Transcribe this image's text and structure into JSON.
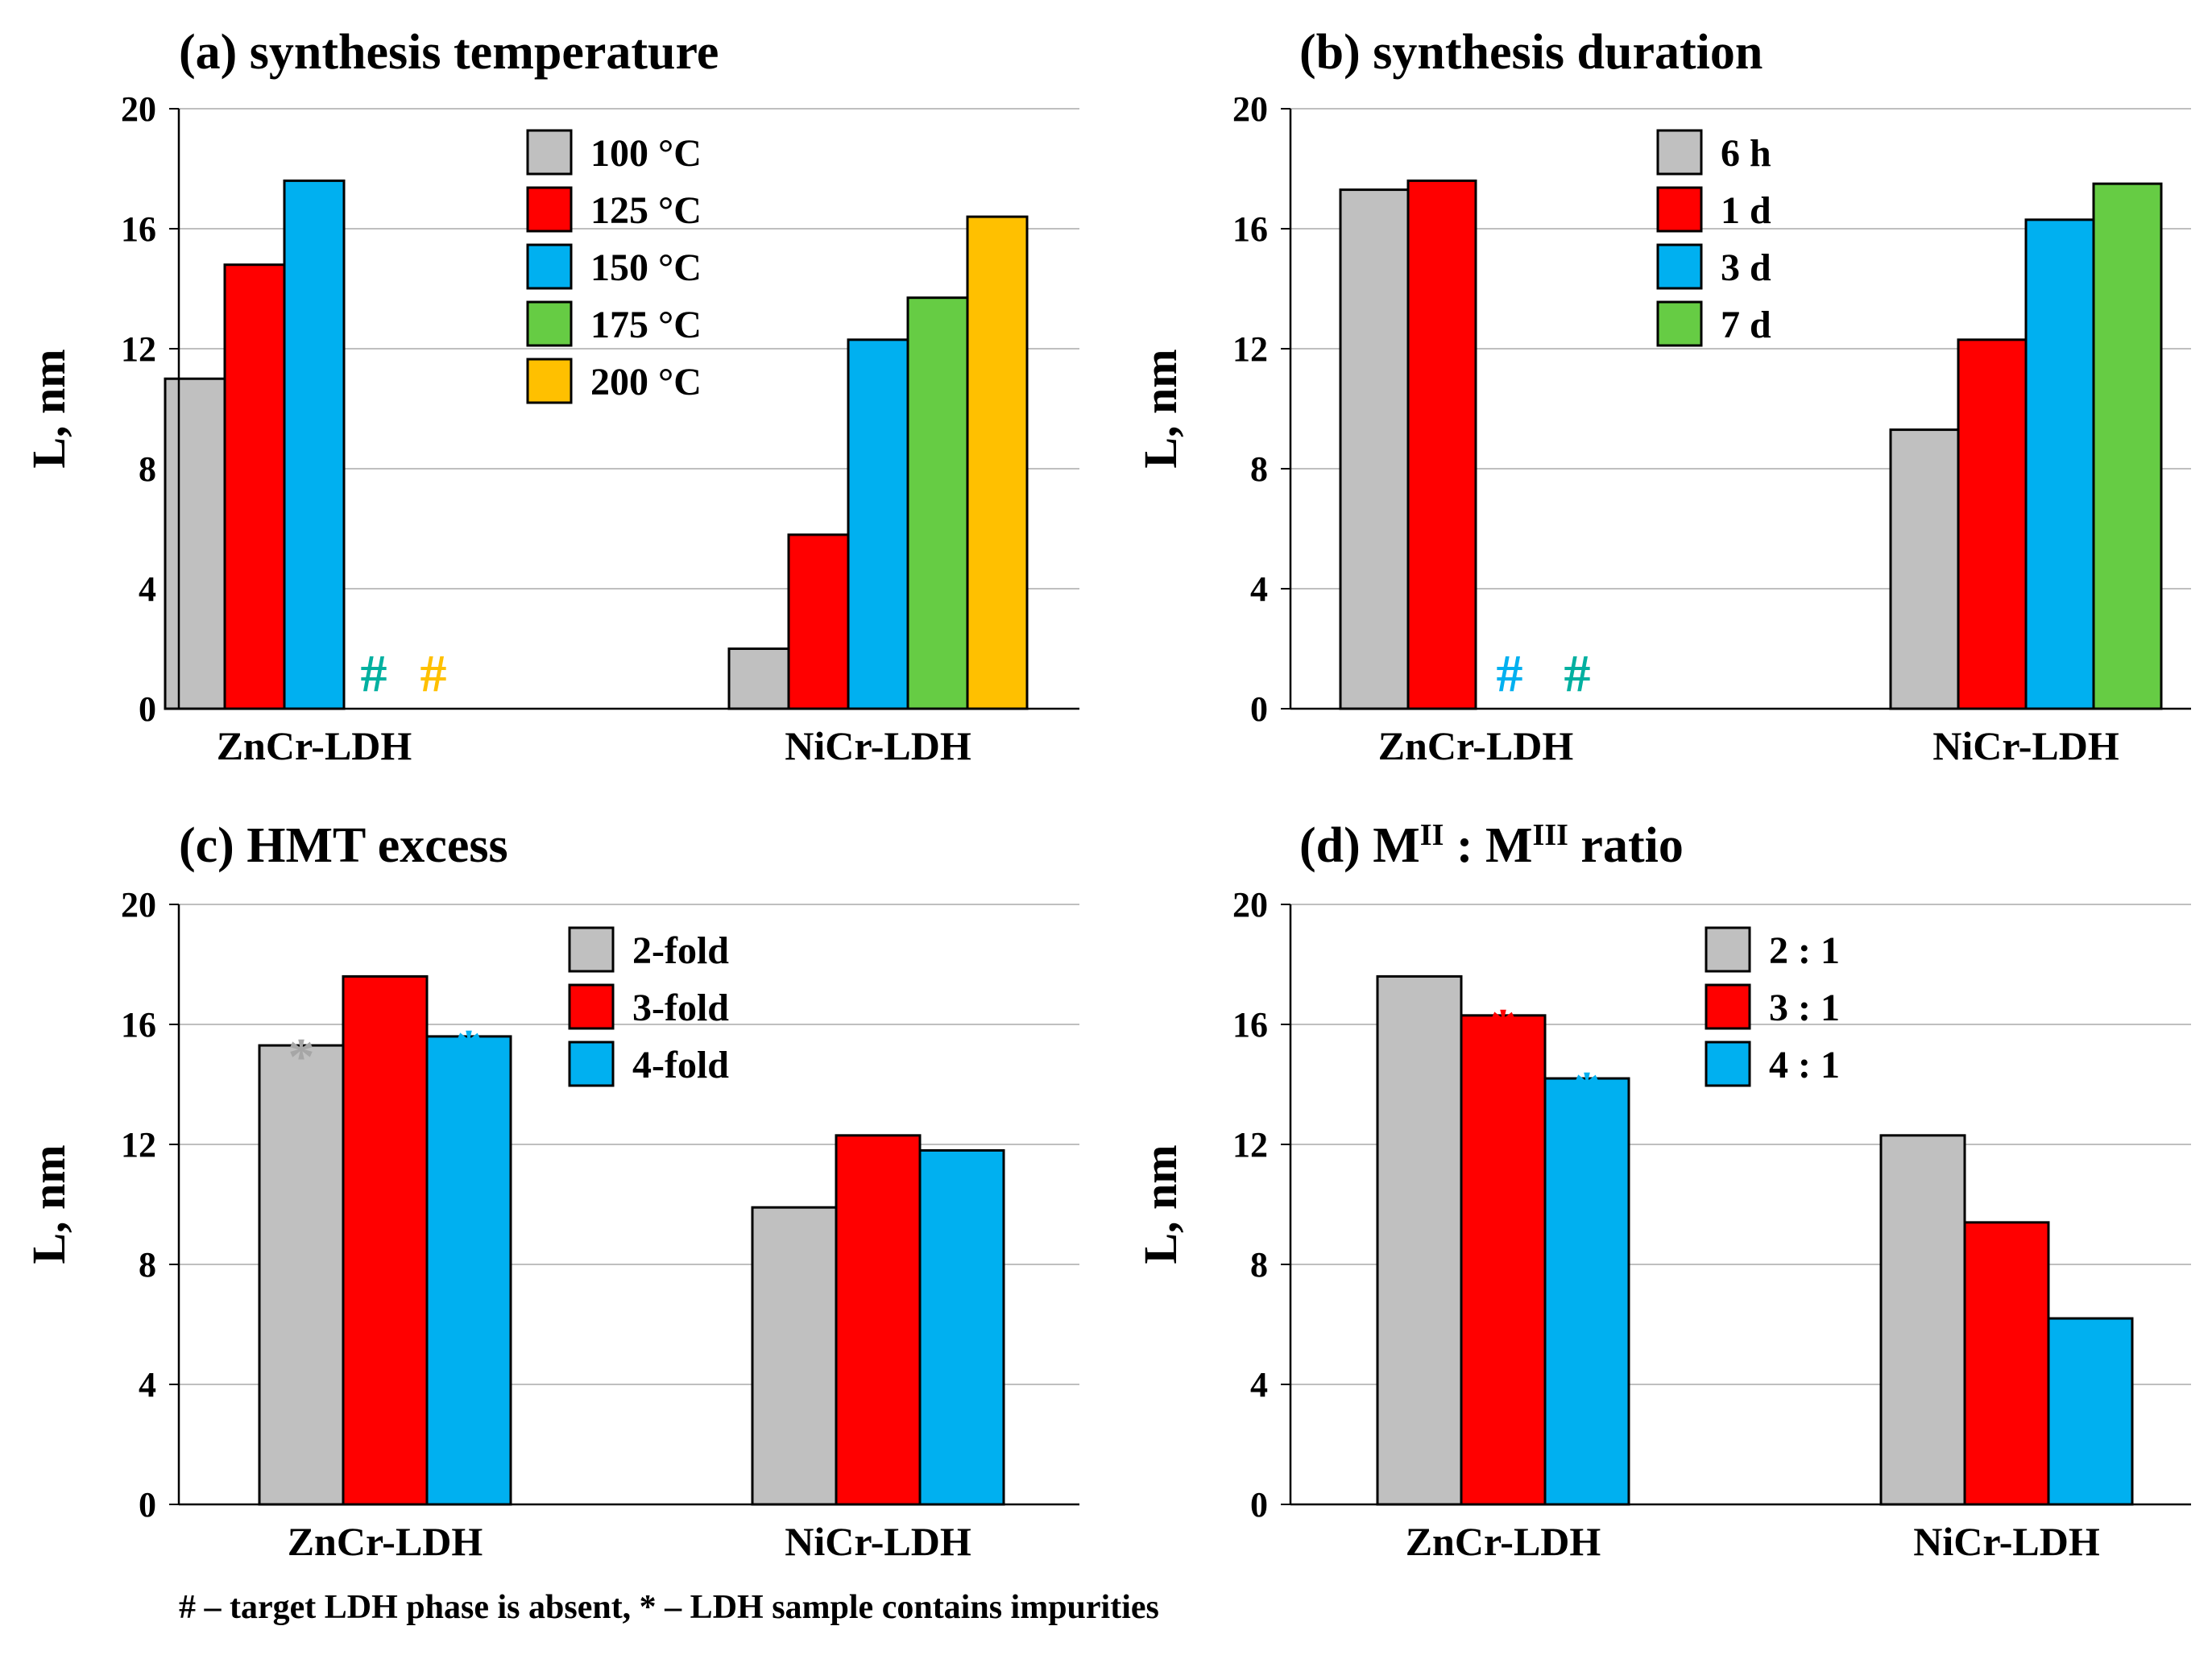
{
  "figure": {
    "footnote": "# – target LDH phase is absent, * – LDH sample contains impurities",
    "colors": {
      "gray": "#c0c0c0",
      "red": "#ff0000",
      "blue": "#00b0f0",
      "green": "#66cc44",
      "orange": "#ffc000",
      "hash_green": "#00b050",
      "hash_teal": "#00b0a0",
      "star_gray": "#a6a6a6",
      "star_red": "#ff0000",
      "star_blue": "#00b0f0",
      "axis": "#000000",
      "grid": "#bfbfbf"
    }
  },
  "chart_data": [
    {
      "type": "bar",
      "title_parts": [
        {
          "t": "(a) synthesis temperature"
        }
      ],
      "title": "(a) synthesis temperature",
      "ylabel": "L, nm",
      "ylim": [
        0,
        20
      ],
      "yticks": [
        "0",
        "4",
        "8",
        "12",
        "16",
        "20"
      ],
      "categories": [
        "ZnCr-LDH",
        "NiCr-LDH"
      ],
      "series": [
        {
          "name": "100 °C",
          "color": "#c0c0c0",
          "values": [
            11.0,
            2.0
          ]
        },
        {
          "name": "125 °C",
          "color": "#ff0000",
          "values": [
            14.8,
            5.8
          ]
        },
        {
          "name": "150 °C",
          "color": "#00b0f0",
          "values": [
            17.6,
            12.3
          ]
        },
        {
          "name": "175 °C",
          "color": "#66cc44",
          "values": [
            null,
            13.7
          ]
        },
        {
          "name": "200 °C",
          "color": "#ffc000",
          "values": [
            null,
            16.4
          ]
        }
      ],
      "markers": [
        {
          "symbol": "#",
          "category": 0,
          "series": 3,
          "color": "#00b0a0"
        },
        {
          "symbol": "#",
          "category": 0,
          "series": 4,
          "color": "#ffc000"
        }
      ]
    },
    {
      "type": "bar",
      "title_parts": [
        {
          "t": "(b) synthesis duration"
        }
      ],
      "title": "(b) synthesis duration",
      "ylabel": "L, nm",
      "ylim": [
        0,
        20
      ],
      "yticks": [
        "0",
        "4",
        "8",
        "12",
        "16",
        "20"
      ],
      "categories": [
        "ZnCr-LDH",
        "NiCr-LDH"
      ],
      "series": [
        {
          "name": "6 h",
          "color": "#c0c0c0",
          "values": [
            17.3,
            9.3
          ]
        },
        {
          "name": "1 d",
          "color": "#ff0000",
          "values": [
            17.6,
            12.3
          ]
        },
        {
          "name": "3 d",
          "color": "#00b0f0",
          "values": [
            null,
            16.3
          ]
        },
        {
          "name": "7 d",
          "color": "#66cc44",
          "values": [
            null,
            17.5
          ]
        }
      ],
      "markers": [
        {
          "symbol": "#",
          "category": 0,
          "series": 2,
          "color": "#00b0f0"
        },
        {
          "symbol": "#",
          "category": 0,
          "series": 3,
          "color": "#00b0a0"
        }
      ]
    },
    {
      "type": "bar",
      "title_parts": [
        {
          "t": "(c) HMT excess"
        }
      ],
      "title": "(c) HMT excess",
      "ylabel": "L, nm",
      "ylim": [
        0,
        20
      ],
      "yticks": [
        "0",
        "4",
        "8",
        "12",
        "16",
        "20"
      ],
      "categories": [
        "ZnCr-LDH",
        "NiCr-LDH"
      ],
      "series": [
        {
          "name": "2-fold",
          "color": "#c0c0c0",
          "values": [
            15.3,
            9.9
          ]
        },
        {
          "name": "3-fold",
          "color": "#ff0000",
          "values": [
            17.6,
            12.3
          ]
        },
        {
          "name": "4-fold",
          "color": "#00b0f0",
          "values": [
            15.6,
            11.8
          ]
        }
      ],
      "markers": [
        {
          "symbol": "*",
          "category": 0,
          "series": 0,
          "color": "#a6a6a6"
        },
        {
          "symbol": "*",
          "category": 0,
          "series": 2,
          "color": "#00b0f0"
        }
      ]
    },
    {
      "type": "bar",
      "title_parts": [
        {
          "t": "(d) M"
        },
        {
          "t": "II",
          "sup": true
        },
        {
          "t": " : M"
        },
        {
          "t": "III",
          "sup": true
        },
        {
          "t": " ratio"
        }
      ],
      "title": "(d) MII : MIII ratio",
      "ylabel": "L, nm",
      "ylim": [
        0,
        20
      ],
      "yticks": [
        "0",
        "4",
        "8",
        "12",
        "16",
        "20"
      ],
      "categories": [
        "ZnCr-LDH",
        "NiCr-LDH"
      ],
      "series": [
        {
          "name": "2 : 1",
          "color": "#c0c0c0",
          "values": [
            17.6,
            12.3
          ]
        },
        {
          "name": "3 : 1",
          "color": "#ff0000",
          "values": [
            16.3,
            9.4
          ]
        },
        {
          "name": "4 : 1",
          "color": "#00b0f0",
          "values": [
            14.2,
            6.2
          ]
        }
      ],
      "markers": [
        {
          "symbol": "*",
          "category": 0,
          "series": 1,
          "color": "#ff0000"
        },
        {
          "symbol": "*",
          "category": 0,
          "series": 2,
          "color": "#00b0f0"
        }
      ]
    }
  ]
}
